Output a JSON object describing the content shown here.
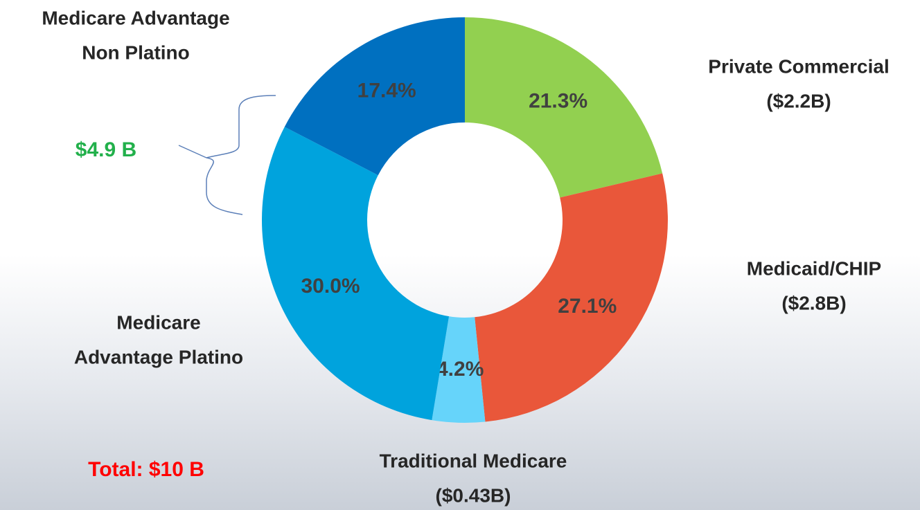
{
  "chart_data": {
    "type": "donut",
    "categories": [
      [
        "Private Commercial",
        "($2.2B)"
      ],
      [
        "Medicaid/CHIP",
        "($2.8B)"
      ],
      [
        "Traditional Medicare",
        "($0.43B)"
      ],
      [
        "Medicare",
        "Advantage Platino"
      ],
      [
        "Medicare Advantage",
        "Non Platino"
      ]
    ],
    "values": [
      21.3,
      27.1,
      4.2,
      30.0,
      17.4
    ],
    "value_labels": [
      "21.3%",
      "27.1%",
      "4.2%",
      "30.0%",
      "17.4%"
    ],
    "colors": [
      "#92d050",
      "#e9573a",
      "#66d4fa",
      "#00a3dd",
      "#0070c0"
    ],
    "annotations": [
      {
        "text": "$4.9 B",
        "color": "#22b04b"
      },
      {
        "text": "Total: $10 B",
        "color": "#ff0000"
      }
    ]
  }
}
